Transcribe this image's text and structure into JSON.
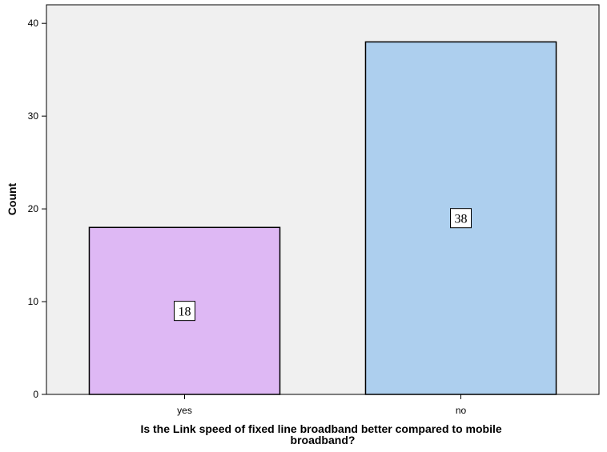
{
  "chart_data": {
    "type": "bar",
    "categories": [
      "yes",
      "no"
    ],
    "values": [
      18,
      38
    ],
    "data_labels": [
      "18",
      "38"
    ],
    "bar_colors": [
      "#DEB8F4",
      "#ADCFEE"
    ],
    "plot_background": "#F0F0F0",
    "title": "",
    "xlabel_lines": [
      "Is the Link speed of fixed line broadband better compared to mobile",
      "broadband?"
    ],
    "ylabel": "Count",
    "ylim": [
      0,
      42
    ],
    "yticks": [
      0,
      10,
      20,
      30,
      40
    ],
    "grid": false,
    "legend": "none"
  }
}
